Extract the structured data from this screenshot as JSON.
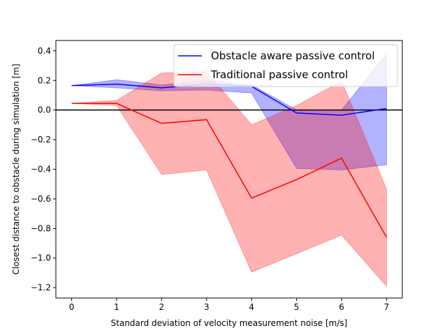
{
  "chart_data": {
    "type": "line",
    "title": "",
    "xlabel": "Standard deviation of velocity measurement noise [m/s]",
    "ylabel": "Closest distance to obstacle during simulation [m]",
    "x": [
      0,
      1,
      2,
      3,
      4,
      5,
      6,
      7
    ],
    "xlim": [
      -0.35,
      7.35
    ],
    "ylim": [
      -1.27,
      0.47
    ],
    "xticks": [
      0,
      1,
      2,
      3,
      4,
      5,
      6,
      7
    ],
    "yticks": [
      0.4,
      0.2,
      0.0,
      -0.2,
      -0.4,
      -0.6,
      -0.8,
      -1.0,
      -1.2
    ],
    "ytick_labels": [
      "0.4",
      "0.2",
      "0.0",
      "−0.2",
      "−0.4",
      "−0.6",
      "−0.8",
      "−1.0",
      "−1.2"
    ],
    "reference_line": {
      "y": 0.0,
      "color": "#000000"
    },
    "series": [
      {
        "name": "Obstacle aware passive control",
        "color": "#0000ff",
        "fill_color": "#0000ff",
        "values": [
          0.165,
          0.175,
          0.15,
          0.175,
          0.16,
          -0.02,
          -0.035,
          0.01
        ],
        "upper": [
          0.165,
          0.205,
          0.17,
          0.2,
          0.17,
          0.0,
          0.0,
          0.38
        ],
        "lower": [
          0.165,
          0.15,
          0.13,
          0.135,
          0.115,
          -0.395,
          -0.405,
          -0.37
        ]
      },
      {
        "name": "Traditional passive control",
        "color": "#ff0000",
        "fill_color": "#ff0000",
        "values": [
          0.045,
          0.045,
          -0.09,
          -0.065,
          -0.595,
          -0.47,
          -0.325,
          -0.86
        ],
        "upper": [
          0.045,
          0.065,
          0.25,
          0.26,
          -0.1,
          0.03,
          0.195,
          -0.535
        ],
        "lower": [
          0.045,
          0.03,
          -0.435,
          -0.405,
          -1.095,
          -0.97,
          -0.845,
          -1.19
        ]
      }
    ],
    "legend": {
      "position": "top-right"
    }
  }
}
